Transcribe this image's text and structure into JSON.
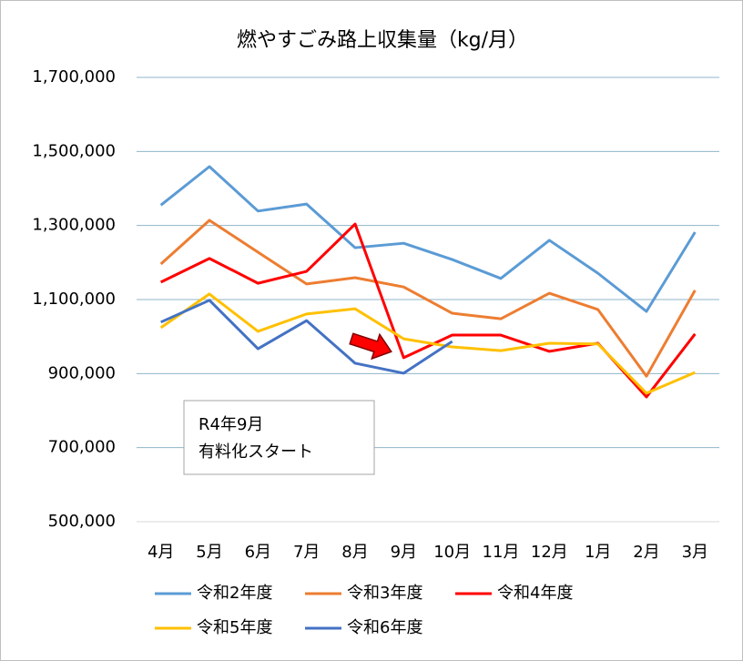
{
  "chart_data": {
    "type": "line",
    "title": "燃やすごみ路上収集量（kg/月）",
    "categories": [
      "4月",
      "5月",
      "6月",
      "7月",
      "8月",
      "9月",
      "10月",
      "11月",
      "12月",
      "1月",
      "2月",
      "3月"
    ],
    "series": [
      {
        "name": "令和2年度",
        "color": "#5b9bd5",
        "values": [
          1355000,
          1459000,
          1339000,
          1358000,
          1240000,
          1252000,
          1208000,
          1157000,
          1260000,
          1171000,
          1068000,
          1282000
        ]
      },
      {
        "name": "令和3年度",
        "color": "#ed7d31",
        "values": [
          1196000,
          1314000,
          1228000,
          1142000,
          1159000,
          1134000,
          1063000,
          1048000,
          1117000,
          1073000,
          893000,
          1125000
        ]
      },
      {
        "name": "令和4年度",
        "color": "#ff0000",
        "values": [
          1147000,
          1211000,
          1144000,
          1176000,
          1304000,
          943000,
          1004000,
          1004000,
          960000,
          982000,
          837000,
          1007000
        ]
      },
      {
        "name": "令和5年度",
        "color": "#ffc000",
        "values": [
          1024000,
          1115000,
          1014000,
          1061000,
          1075000,
          994000,
          972000,
          962000,
          982000,
          980000,
          847000,
          903000
        ]
      },
      {
        "name": "令和6年度",
        "color": "#4472c4",
        "values": [
          1039000,
          1098000,
          967000,
          1043000,
          928000,
          901000,
          987000,
          null,
          null,
          null,
          null,
          null
        ]
      }
    ],
    "ylim": [
      500000,
      1700000
    ],
    "yticks": [
      {
        "value": 500000,
        "label": "500,000"
      },
      {
        "value": 700000,
        "label": "700,000"
      },
      {
        "value": 900000,
        "label": "900,000"
      },
      {
        "value": 1100000,
        "label": "1,100,000"
      },
      {
        "value": 1300000,
        "label": "1,300,000"
      },
      {
        "value": 1500000,
        "label": "1,500,000"
      },
      {
        "value": 1700000,
        "label": "1,700,000"
      }
    ],
    "grid": true,
    "legend": "bottom",
    "annotation": [
      "R4年9月",
      "有料化スタート"
    ]
  }
}
